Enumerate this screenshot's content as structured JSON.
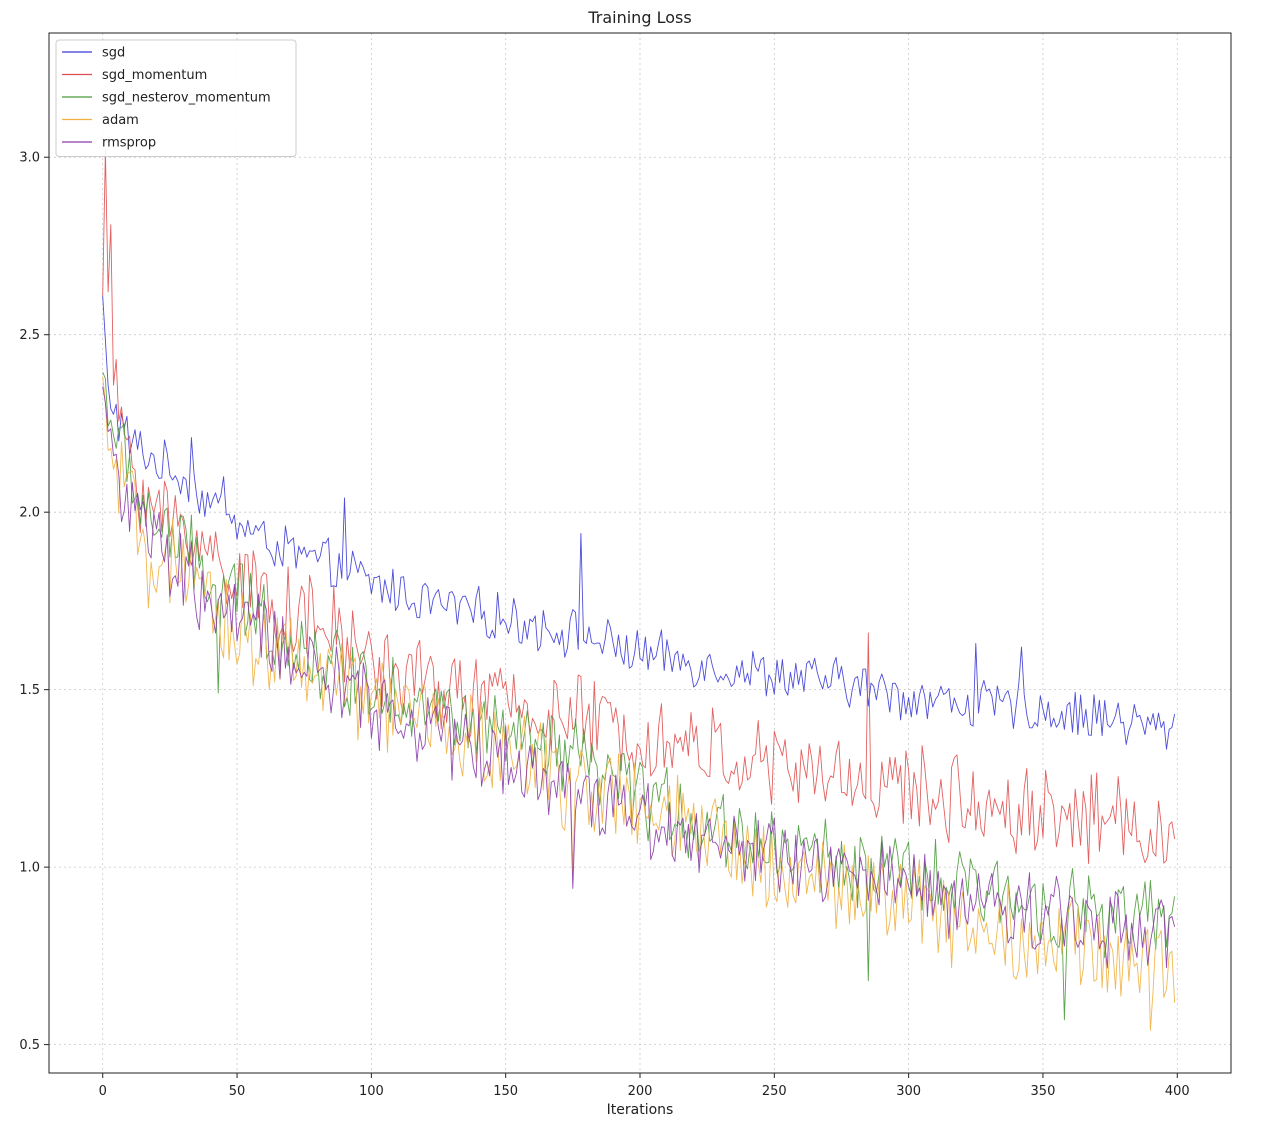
{
  "chart_data": {
    "type": "line",
    "title": "Training Loss",
    "xlabel": "Iterations",
    "ylabel": "",
    "xlim": [
      -20,
      420
    ],
    "ylim": [
      0.42,
      3.35
    ],
    "xticks": [
      0,
      50,
      100,
      150,
      200,
      250,
      300,
      350,
      400
    ],
    "xtick_labels": [
      "0",
      "50",
      "100",
      "150",
      "200",
      "250",
      "300",
      "350",
      "400"
    ],
    "yticks": [
      0.5,
      1.0,
      1.5,
      2.0,
      2.5,
      3.0
    ],
    "ytick_labels": [
      "0.5",
      "1.0",
      "1.5",
      "2.0",
      "2.5",
      "3.0"
    ],
    "grid": true,
    "legend_position": "top-left",
    "x_values": [
      0,
      2,
      5,
      10,
      15,
      20,
      30,
      40,
      50,
      60,
      75,
      90,
      100,
      125,
      150,
      175,
      200,
      225,
      250,
      275,
      300,
      325,
      350,
      375,
      400
    ],
    "series": [
      {
        "name": "sgd",
        "color": "#3b3bd6",
        "values": [
          2.6,
          2.34,
          2.27,
          2.2,
          2.17,
          2.14,
          2.1,
          2.02,
          1.97,
          1.92,
          1.87,
          1.84,
          1.8,
          1.74,
          1.7,
          1.66,
          1.6,
          1.57,
          1.54,
          1.52,
          1.48,
          1.46,
          1.44,
          1.42,
          1.38
        ],
        "noise": 0.06,
        "spikes": [
          [
            33,
            2.21
          ],
          [
            45,
            2.1
          ],
          [
            90,
            2.04
          ],
          [
            178,
            1.94
          ],
          [
            325,
            1.63
          ],
          [
            342,
            1.62
          ]
        ]
      },
      {
        "name": "sgd_momentum",
        "color": "#e05050",
        "values": [
          2.65,
          2.55,
          2.3,
          2.18,
          2.05,
          2.0,
          1.96,
          1.88,
          1.83,
          1.76,
          1.7,
          1.64,
          1.58,
          1.5,
          1.46,
          1.42,
          1.37,
          1.33,
          1.28,
          1.25,
          1.22,
          1.18,
          1.16,
          1.14,
          1.1
        ],
        "noise": 0.11,
        "spikes": [
          [
            1,
            3.02
          ],
          [
            3,
            2.81
          ],
          [
            285,
            1.66
          ]
        ]
      },
      {
        "name": "sgd_nesterov_momentum",
        "color": "#4a9a3a",
        "values": [
          2.4,
          2.3,
          2.2,
          2.1,
          2.02,
          1.97,
          1.9,
          1.8,
          1.76,
          1.7,
          1.6,
          1.55,
          1.52,
          1.44,
          1.36,
          1.3,
          1.2,
          1.12,
          1.06,
          1.02,
          0.97,
          0.93,
          0.9,
          0.86,
          0.84
        ],
        "noise": 0.1,
        "spikes": [
          [
            43,
            1.49
          ],
          [
            285,
            0.68
          ],
          [
            358,
            0.57
          ]
        ]
      },
      {
        "name": "adam",
        "color": "#f0b040",
        "values": [
          2.35,
          2.2,
          2.1,
          2.0,
          1.93,
          1.88,
          1.8,
          1.72,
          1.67,
          1.63,
          1.56,
          1.5,
          1.47,
          1.4,
          1.32,
          1.24,
          1.16,
          1.08,
          1.0,
          0.95,
          0.9,
          0.84,
          0.8,
          0.75,
          0.72
        ],
        "noise": 0.12,
        "spikes": [
          [
            17,
            1.73
          ],
          [
            175,
            0.99
          ],
          [
            390,
            0.54
          ]
        ]
      },
      {
        "name": "rmsprop",
        "color": "#8a3aa8",
        "values": [
          2.38,
          2.25,
          2.12,
          2.02,
          1.96,
          1.9,
          1.82,
          1.74,
          1.7,
          1.65,
          1.57,
          1.5,
          1.46,
          1.38,
          1.3,
          1.22,
          1.15,
          1.08,
          1.02,
          0.98,
          0.94,
          0.9,
          0.87,
          0.84,
          0.82
        ],
        "noise": 0.1,
        "spikes": [
          [
            175,
            0.94
          ]
        ]
      }
    ]
  }
}
